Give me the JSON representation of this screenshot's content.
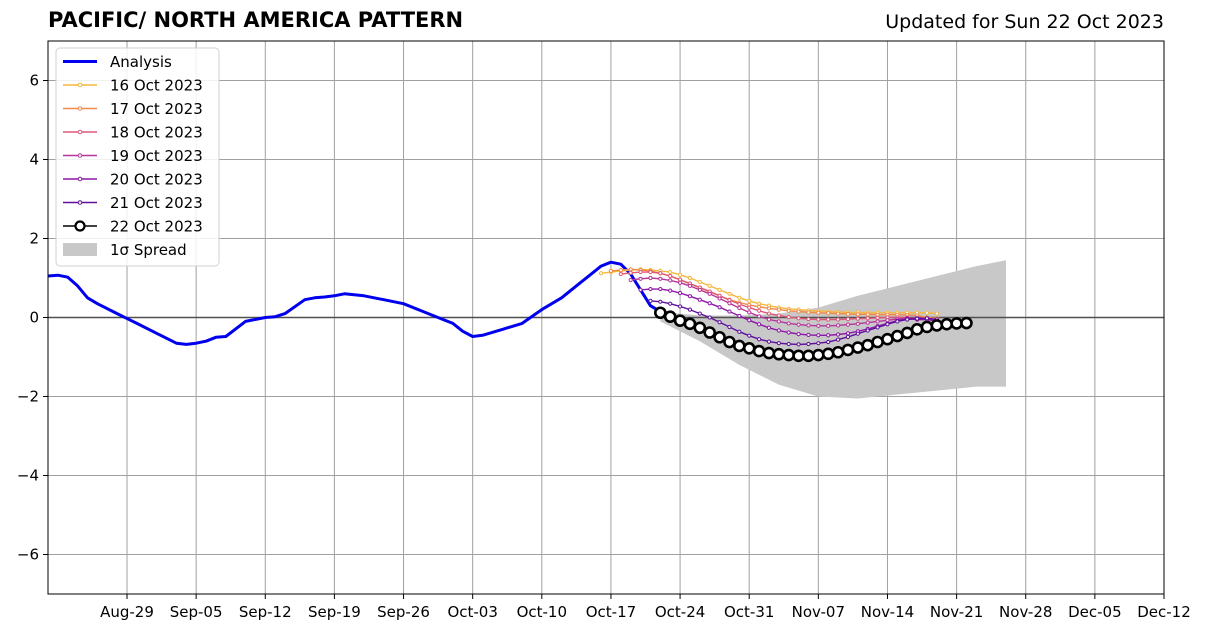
{
  "chart_data": {
    "type": "line",
    "title": "PACIFIC/ NORTH AMERICA PATTERN",
    "subtitle": "Updated for Sun 22 Oct 2023",
    "xlim": [
      "2023-08-21",
      "2023-12-12"
    ],
    "ylim": [
      -7,
      7
    ],
    "yticks": [
      -6,
      -4,
      -2,
      0,
      2,
      4,
      6
    ],
    "ytick_labels": [
      "−6",
      "−4",
      "−2",
      "0",
      "2",
      "4",
      "6"
    ],
    "xticks": [
      "2023-08-29",
      "2023-09-05",
      "2023-09-12",
      "2023-09-19",
      "2023-09-26",
      "2023-10-03",
      "2023-10-10",
      "2023-10-17",
      "2023-10-24",
      "2023-10-31",
      "2023-11-07",
      "2023-11-14",
      "2023-11-21",
      "2023-11-28",
      "2023-12-05",
      "2023-12-12"
    ],
    "xtick_labels": [
      "Aug-29",
      "Sep-05",
      "Sep-12",
      "Sep-19",
      "Sep-26",
      "Oct-03",
      "Oct-10",
      "Oct-17",
      "Oct-24",
      "Oct-31",
      "Nov-07",
      "Nov-14",
      "Nov-21",
      "Nov-28",
      "Dec-05",
      "Dec-12"
    ],
    "grid": true,
    "legend_position": "top-left",
    "analysis": {
      "name": "Analysis",
      "color": "#0000ee",
      "x": [
        "2023-08-21",
        "2023-08-22",
        "2023-08-23",
        "2023-08-24",
        "2023-08-25",
        "2023-08-26",
        "2023-08-28",
        "2023-08-30",
        "2023-09-01",
        "2023-09-03",
        "2023-09-04",
        "2023-09-05",
        "2023-09-06",
        "2023-09-07",
        "2023-09-08",
        "2023-09-10",
        "2023-09-12",
        "2023-09-13",
        "2023-09-14",
        "2023-09-16",
        "2023-09-17",
        "2023-09-18",
        "2023-09-19",
        "2023-09-20",
        "2023-09-22",
        "2023-09-24",
        "2023-09-26",
        "2023-09-28",
        "2023-09-30",
        "2023-10-01",
        "2023-10-02",
        "2023-10-03",
        "2023-10-04",
        "2023-10-06",
        "2023-10-08",
        "2023-10-10",
        "2023-10-12",
        "2023-10-14",
        "2023-10-15",
        "2023-10-16",
        "2023-10-17",
        "2023-10-18",
        "2023-10-19",
        "2023-10-20",
        "2023-10-21",
        "2023-10-22"
      ],
      "y": [
        1.05,
        1.07,
        1.02,
        0.8,
        0.5,
        0.35,
        0.1,
        -0.15,
        -0.4,
        -0.65,
        -0.68,
        -0.65,
        -0.6,
        -0.5,
        -0.48,
        -0.1,
        -0.0,
        0.02,
        0.1,
        0.45,
        0.5,
        0.52,
        0.55,
        0.6,
        0.55,
        0.45,
        0.35,
        0.15,
        -0.05,
        -0.15,
        -0.35,
        -0.48,
        -0.45,
        -0.3,
        -0.15,
        0.2,
        0.5,
        0.9,
        1.1,
        1.3,
        1.4,
        1.35,
        1.1,
        0.7,
        0.3,
        0.15
      ]
    },
    "spread": {
      "name": "1σ Spread",
      "color": "#c8c8c8",
      "x": [
        "2023-10-22",
        "2023-10-26",
        "2023-10-30",
        "2023-11-03",
        "2023-11-07",
        "2023-11-11",
        "2023-11-15",
        "2023-11-19",
        "2023-11-23",
        "2023-11-26"
      ],
      "upper": [
        0.15,
        0.05,
        0.05,
        0.1,
        0.25,
        0.55,
        0.8,
        1.05,
        1.3,
        1.45
      ],
      "lower": [
        -0.1,
        -0.6,
        -1.2,
        -1.7,
        -2.0,
        -2.05,
        -1.95,
        -1.85,
        -1.75,
        -1.75
      ]
    },
    "series": [
      {
        "name": "16 Oct 2023",
        "color": "#f6b73c",
        "start": "2023-10-16",
        "y": [
          1.12,
          1.15,
          1.18,
          1.2,
          1.22,
          1.2,
          1.18,
          1.15,
          1.08,
          1.0,
          0.9,
          0.8,
          0.7,
          0.6,
          0.5,
          0.42,
          0.35,
          0.3,
          0.25,
          0.22,
          0.2,
          0.18,
          0.16,
          0.15,
          0.14,
          0.13,
          0.13,
          0.12,
          0.12,
          0.12,
          0.12,
          0.12,
          0.12,
          0.12,
          0.1
        ]
      },
      {
        "name": "17 Oct 2023",
        "color": "#f08a4b",
        "start": "2023-10-17",
        "y": [
          1.18,
          1.2,
          1.22,
          1.2,
          1.18,
          1.12,
          1.05,
          0.95,
          0.85,
          0.75,
          0.65,
          0.55,
          0.45,
          0.38,
          0.32,
          0.27,
          0.23,
          0.2,
          0.17,
          0.15,
          0.13,
          0.12,
          0.11,
          0.1,
          0.09,
          0.08,
          0.08,
          0.07,
          0.07,
          0.07,
          0.06,
          0.05,
          0.0,
          -0.02
        ]
      },
      {
        "name": "18 Oct 2023",
        "color": "#de5878",
        "start": "2023-10-18",
        "y": [
          1.1,
          1.13,
          1.15,
          1.15,
          1.12,
          1.05,
          0.96,
          0.86,
          0.76,
          0.66,
          0.55,
          0.44,
          0.34,
          0.25,
          0.17,
          0.1,
          0.05,
          0.01,
          -0.02,
          -0.04,
          -0.05,
          -0.05,
          -0.05,
          -0.04,
          -0.03,
          -0.02,
          -0.01,
          0.0,
          0.0,
          0.0,
          -0.05,
          -0.05,
          -0.05
        ]
      },
      {
        "name": "19 Oct 2023",
        "color": "#b5369a",
        "start": "2023-10-19",
        "y": [
          0.95,
          0.98,
          1.0,
          0.98,
          0.94,
          0.88,
          0.8,
          0.7,
          0.6,
          0.48,
          0.36,
          0.24,
          0.13,
          0.03,
          -0.05,
          -0.1,
          -0.15,
          -0.18,
          -0.2,
          -0.21,
          -0.21,
          -0.2,
          -0.18,
          -0.16,
          -0.13,
          -0.1,
          -0.07,
          -0.04,
          -0.02,
          -0.01,
          -0.02,
          -0.05
        ]
      },
      {
        "name": "20 Oct 2023",
        "color": "#8e16a8",
        "start": "2023-10-20",
        "y": [
          0.7,
          0.72,
          0.72,
          0.68,
          0.62,
          0.54,
          0.45,
          0.36,
          0.26,
          0.15,
          0.04,
          -0.07,
          -0.17,
          -0.26,
          -0.33,
          -0.38,
          -0.42,
          -0.44,
          -0.45,
          -0.45,
          -0.43,
          -0.4,
          -0.35,
          -0.29,
          -0.22,
          -0.15,
          -0.08,
          -0.03,
          -0.05,
          -0.05,
          -0.1
        ]
      },
      {
        "name": "21 Oct 2023",
        "color": "#5d109c",
        "start": "2023-10-21",
        "y": [
          0.42,
          0.4,
          0.35,
          0.28,
          0.2,
          0.1,
          0.0,
          -0.12,
          -0.24,
          -0.36,
          -0.46,
          -0.55,
          -0.61,
          -0.65,
          -0.67,
          -0.68,
          -0.67,
          -0.65,
          -0.62,
          -0.56,
          -0.49,
          -0.41,
          -0.33,
          -0.25,
          -0.17,
          -0.1,
          -0.05,
          -0.03,
          -0.02,
          -0.05
        ]
      },
      {
        "name": "22 Oct 2023",
        "color": "#000000",
        "start": "2023-10-22",
        "y": [
          0.12,
          0.02,
          -0.08,
          -0.16,
          -0.26,
          -0.38,
          -0.5,
          -0.62,
          -0.72,
          -0.78,
          -0.85,
          -0.9,
          -0.93,
          -0.95,
          -0.97,
          -0.97,
          -0.95,
          -0.92,
          -0.88,
          -0.82,
          -0.76,
          -0.7,
          -0.62,
          -0.55,
          -0.47,
          -0.39,
          -0.3,
          -0.24,
          -0.2,
          -0.17,
          -0.15,
          -0.14
        ]
      }
    ],
    "legend": [
      "Analysis",
      "16 Oct 2023",
      "17 Oct 2023",
      "18 Oct 2023",
      "19 Oct 2023",
      "20 Oct 2023",
      "21 Oct 2023",
      "22 Oct 2023",
      "1σ Spread"
    ]
  }
}
